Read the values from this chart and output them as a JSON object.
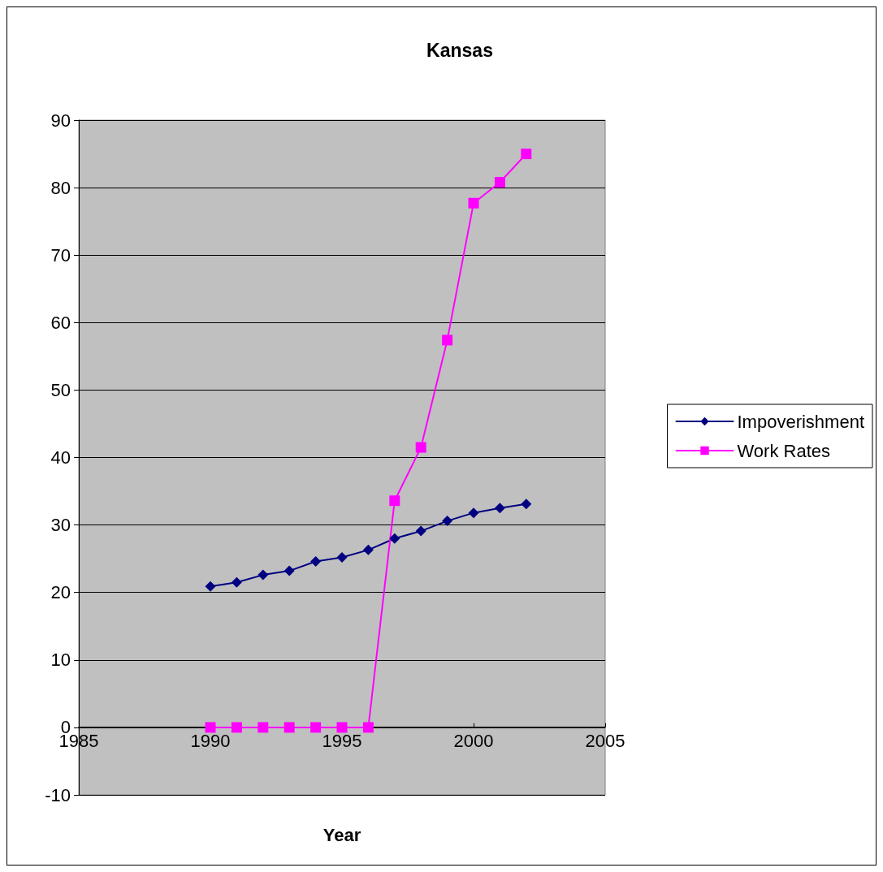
{
  "chart_data": {
    "type": "line",
    "title": "Kansas",
    "xlabel": "Year",
    "x": [
      1990,
      1991,
      1992,
      1993,
      1994,
      1995,
      1996,
      1997,
      1998,
      1999,
      2000,
      2001,
      2002
    ],
    "series": [
      {
        "name": "Impoverishment",
        "color": "#000080",
        "marker": "diamond",
        "values": [
          20.9,
          21.5,
          22.6,
          23.2,
          24.6,
          25.2,
          26.3,
          28.0,
          29.1,
          30.6,
          31.8,
          32.5,
          33.1
        ]
      },
      {
        "name": "Work Rates",
        "color": "#ff00ff",
        "marker": "square",
        "values": [
          0,
          0,
          0,
          0,
          0,
          0,
          0,
          33.6,
          41.5,
          57.4,
          77.7,
          80.8,
          85.0
        ]
      }
    ],
    "xlim": [
      1985,
      2005
    ],
    "xticks": [
      1985,
      1990,
      1995,
      2000,
      2005
    ],
    "ylim": [
      -10,
      90
    ],
    "yticks": [
      -10,
      0,
      10,
      20,
      30,
      40,
      50,
      60,
      70,
      80,
      90
    ],
    "grid": "y",
    "legend": "right"
  }
}
